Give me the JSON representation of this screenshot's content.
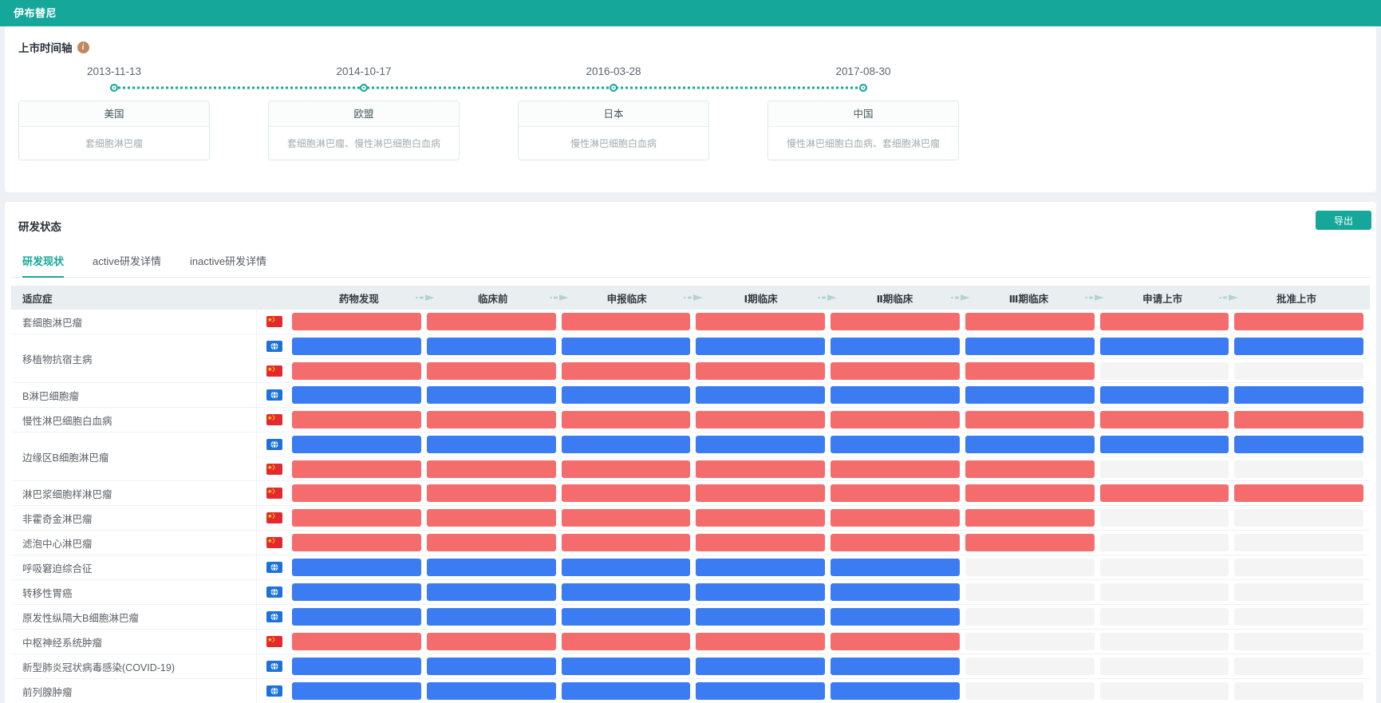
{
  "header": {
    "title": "伊布替尼"
  },
  "timeline": {
    "section_title": "上市时间轴",
    "events": [
      {
        "date": "2013-11-13",
        "region": "美国",
        "indications": "套细胞淋巴瘤"
      },
      {
        "date": "2014-10-17",
        "region": "欧盟",
        "indications": "套细胞淋巴瘤、慢性淋巴细胞白血病"
      },
      {
        "date": "2016-03-28",
        "region": "日本",
        "indications": "慢性淋巴细胞白血病"
      },
      {
        "date": "2017-08-30",
        "region": "中国",
        "indications": "慢性淋巴细胞白血病、套细胞淋巴瘤"
      }
    ]
  },
  "rnd": {
    "section_title": "研发状态",
    "export_label": "导出",
    "tabs": [
      {
        "label": "研发现状",
        "active": true
      },
      {
        "label": "active研发详情",
        "active": false
      },
      {
        "label": "inactive研发详情",
        "active": false
      }
    ],
    "table": {
      "indication_header": "适应症",
      "stages": [
        "药物发现",
        "临床前",
        "申报临床",
        "Ⅰ期临床",
        "Ⅱ期临床",
        "Ⅲ期临床",
        "申请上市",
        "批准上市"
      ],
      "rows": [
        {
          "indication": "套细胞淋巴瘤",
          "tracks": [
            {
              "scope": "china",
              "progress": 8
            }
          ]
        },
        {
          "indication": "移植物抗宿主病",
          "tracks": [
            {
              "scope": "global",
              "progress": 8
            },
            {
              "scope": "china",
              "progress": 6
            }
          ]
        },
        {
          "indication": "B淋巴细胞瘤",
          "tracks": [
            {
              "scope": "global",
              "progress": 8
            }
          ]
        },
        {
          "indication": "慢性淋巴细胞白血病",
          "tracks": [
            {
              "scope": "china",
              "progress": 8
            }
          ]
        },
        {
          "indication": "边缘区B细胞淋巴瘤",
          "tracks": [
            {
              "scope": "global",
              "progress": 8
            },
            {
              "scope": "china",
              "progress": 6
            }
          ]
        },
        {
          "indication": "淋巴浆细胞样淋巴瘤",
          "tracks": [
            {
              "scope": "china",
              "progress": 8
            }
          ]
        },
        {
          "indication": "非霍奇金淋巴瘤",
          "tracks": [
            {
              "scope": "china",
              "progress": 6
            }
          ]
        },
        {
          "indication": "滤泡中心淋巴瘤",
          "tracks": [
            {
              "scope": "china",
              "progress": 6
            }
          ]
        },
        {
          "indication": "呼吸窘迫综合征",
          "tracks": [
            {
              "scope": "global",
              "progress": 5
            }
          ]
        },
        {
          "indication": "转移性胃癌",
          "tracks": [
            {
              "scope": "global",
              "progress": 5
            }
          ]
        },
        {
          "indication": "原发性纵隔大B细胞淋巴瘤",
          "tracks": [
            {
              "scope": "global",
              "progress": 5
            }
          ]
        },
        {
          "indication": "中枢神经系统肿瘤",
          "tracks": [
            {
              "scope": "china",
              "progress": 5
            }
          ]
        },
        {
          "indication": "新型肺炎冠状病毒感染(COVID-19)",
          "tracks": [
            {
              "scope": "global",
              "progress": 5
            }
          ]
        },
        {
          "indication": "前列腺肿瘤",
          "tracks": [
            {
              "scope": "global",
              "progress": 5
            }
          ]
        }
      ]
    }
  },
  "colors": {
    "accent_teal": "#16a79b",
    "info_icon": "#c0875f",
    "bar_blue": "#3b7cf2",
    "bar_red": "#f56c6c",
    "segment_empty": "#f4f4f5",
    "table_header_bg": "#e9eef1",
    "stage_arrow": "#b3d2d3",
    "flag_red": "#e2292f",
    "flag_star_yellow": "#ffde00",
    "globe_blue": "#1b72d8"
  },
  "icons": {
    "info": "info-icon",
    "china": "china-flag-icon",
    "global": "globe-icon",
    "stage_arrow": "stage-arrow-icon"
  }
}
